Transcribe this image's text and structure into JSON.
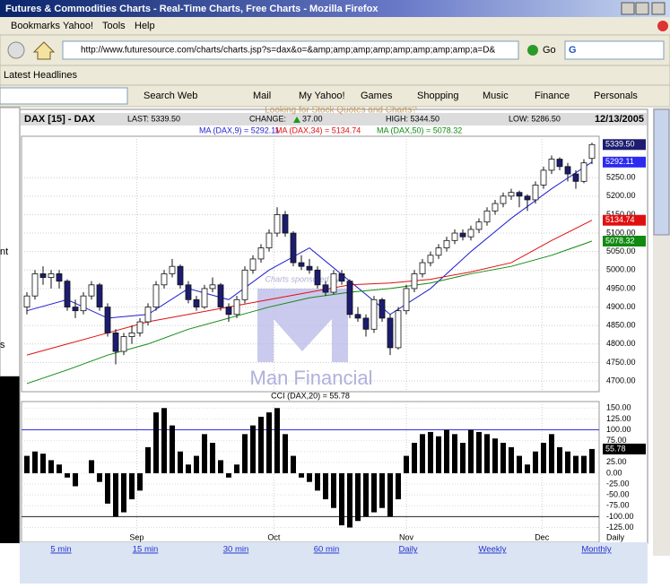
{
  "window": {
    "title": "Futures & Commodities Charts - Real-Time Charts, Free Charts - Mozilla Firefox"
  },
  "menu": [
    "Bookmarks",
    "Yahoo!",
    "Tools",
    "Help"
  ],
  "nav": {
    "url": "http://www.futuresource.com/charts/charts.jsp?s=dax&o=&amp;amp;amp;amp;amp;amp;amp;amp;a=D&",
    "go": "Go"
  },
  "headlines": "Latest Headlines",
  "yahoo_toolbar": [
    "Search Web",
    "Mail",
    "My Yahoo!",
    "Games",
    "Shopping",
    "Music",
    "Finance",
    "Personals"
  ],
  "sidebar": [
    "nt",
    "s"
  ],
  "promo": "Looking for Stock Quotes and Charts?",
  "watermark": {
    "sponsor": "Charts sponsored by",
    "brand": "Man Financial"
  },
  "chart": {
    "type": "candlestick",
    "symbol": "DAX [15] - DAX",
    "last": "LAST: 5339.50",
    "change": "CHANGE:",
    "change_value": "37.00",
    "high": "HIGH: 5344.50",
    "low": "LOW: 5286.50",
    "date": "12/13/2005",
    "ylim": [
      4671,
      5362
    ],
    "yticks": [
      {
        "value": 4700,
        "label": "4700.00"
      },
      {
        "value": 4750,
        "label": "4750.00"
      },
      {
        "value": 4800,
        "label": "4800.00"
      },
      {
        "value": 4850,
        "label": "4850.00"
      },
      {
        "value": 4900,
        "label": "4900.00"
      },
      {
        "value": 4950,
        "label": "4950.00"
      },
      {
        "value": 5000,
        "label": "5000.00"
      },
      {
        "value": 5050,
        "label": "5050.00"
      },
      {
        "value": 5100,
        "label": "5100.00"
      },
      {
        "value": 5150,
        "label": "5150.00"
      },
      {
        "value": 5200,
        "label": "5200.00"
      },
      {
        "value": 5250,
        "label": "5250.00"
      }
    ],
    "last_label": "5339.50",
    "candles": [
      [
        4900,
        4940,
        4880,
        4930
      ],
      [
        4930,
        5000,
        4920,
        4990
      ],
      [
        4990,
        5010,
        4960,
        4980
      ],
      [
        4980,
        5000,
        4950,
        4990
      ],
      [
        4990,
        5000,
        4950,
        4970
      ],
      [
        4970,
        4975,
        4890,
        4900
      ],
      [
        4900,
        4920,
        4870,
        4890
      ],
      [
        4890,
        4940,
        4880,
        4930
      ],
      [
        4930,
        4970,
        4920,
        4960
      ],
      [
        4960,
        4965,
        4890,
        4900
      ],
      [
        4900,
        4910,
        4820,
        4830
      ],
      [
        4830,
        4840,
        4745,
        4780
      ],
      [
        4780,
        4830,
        4770,
        4820
      ],
      [
        4820,
        4850,
        4800,
        4830
      ],
      [
        4830,
        4870,
        4820,
        4860
      ],
      [
        4860,
        4910,
        4850,
        4900
      ],
      [
        4900,
        4970,
        4890,
        4960
      ],
      [
        4960,
        5000,
        4950,
        4990
      ],
      [
        4990,
        5030,
        4980,
        5010
      ],
      [
        5010,
        5015,
        4950,
        4960
      ],
      [
        4960,
        4970,
        4910,
        4920
      ],
      [
        4920,
        4930,
        4890,
        4900
      ],
      [
        4900,
        4960,
        4895,
        4950
      ],
      [
        4950,
        4980,
        4940,
        4960
      ],
      [
        4960,
        4965,
        4890,
        4900
      ],
      [
        4900,
        4910,
        4860,
        4880
      ],
      [
        4880,
        4930,
        4870,
        4920
      ],
      [
        4920,
        5010,
        4910,
        5000
      ],
      [
        5000,
        5040,
        4990,
        5030
      ],
      [
        5030,
        5070,
        5020,
        5060
      ],
      [
        5060,
        5110,
        5050,
        5100
      ],
      [
        5100,
        5170,
        5090,
        5150
      ],
      [
        5150,
        5160,
        5090,
        5100
      ],
      [
        5100,
        5105,
        5010,
        5020
      ],
      [
        5020,
        5040,
        5000,
        5010
      ],
      [
        5010,
        5030,
        4990,
        5000
      ],
      [
        5000,
        5010,
        4950,
        4960
      ],
      [
        4960,
        4970,
        4930,
        4940
      ],
      [
        4940,
        5000,
        4935,
        4990
      ],
      [
        4990,
        5000,
        4960,
        4970
      ],
      [
        4970,
        4975,
        4870,
        4880
      ],
      [
        4880,
        4900,
        4860,
        4870
      ],
      [
        4870,
        4880,
        4820,
        4840
      ],
      [
        4840,
        4930,
        4830,
        4920
      ],
      [
        4920,
        4925,
        4860,
        4870
      ],
      [
        4870,
        4880,
        4770,
        4790
      ],
      [
        4790,
        4900,
        4785,
        4890
      ],
      [
        4890,
        4960,
        4880,
        4950
      ],
      [
        4950,
        5000,
        4940,
        4990
      ],
      [
        4990,
        5030,
        4980,
        5020
      ],
      [
        5020,
        5050,
        5010,
        5040
      ],
      [
        5040,
        5070,
        5030,
        5060
      ],
      [
        5060,
        5090,
        5050,
        5080
      ],
      [
        5080,
        5110,
        5070,
        5100
      ],
      [
        5100,
        5110,
        5080,
        5090
      ],
      [
        5090,
        5120,
        5080,
        5110
      ],
      [
        5110,
        5140,
        5100,
        5130
      ],
      [
        5130,
        5170,
        5120,
        5160
      ],
      [
        5160,
        5190,
        5150,
        5180
      ],
      [
        5180,
        5210,
        5170,
        5200
      ],
      [
        5200,
        5220,
        5190,
        5210
      ],
      [
        5210,
        5215,
        5170,
        5200
      ],
      [
        5200,
        5205,
        5160,
        5190
      ],
      [
        5190,
        5240,
        5180,
        5230
      ],
      [
        5230,
        5280,
        5220,
        5270
      ],
      [
        5270,
        5310,
        5260,
        5300
      ],
      [
        5300,
        5305,
        5270,
        5280
      ],
      [
        5280,
        5290,
        5240,
        5260
      ],
      [
        5260,
        5270,
        5220,
        5240
      ],
      [
        5240,
        5300,
        5235,
        5290
      ],
      [
        5302,
        5344.5,
        5286.5,
        5339.5
      ]
    ],
    "ma": {
      "x": [
        0,
        5,
        10,
        15,
        20,
        25,
        30,
        35,
        40,
        45,
        50,
        55,
        60,
        65,
        70
      ],
      "series": [
        {
          "name": "MA (DAX,9) = 5292.11",
          "color": "#1f1fd0",
          "value_label": "5292.11",
          "values": [
            4890,
            4920,
            4870,
            4880,
            4950,
            4920,
            5000,
            5060,
            4970,
            4880,
            4950,
            5050,
            5140,
            5220,
            5292.11
          ]
        },
        {
          "name": "MA (DAX,34) = 5134.74",
          "color": "#e01010",
          "value_label": "5134.74",
          "values": [
            4770,
            4800,
            4830,
            4860,
            4880,
            4900,
            4920,
            4940,
            4960,
            4965,
            4975,
            4995,
            5020,
            5080,
            5134.74
          ]
        },
        {
          "name": "MA (DAX,50) = 5078.32",
          "color": "#108a10",
          "value_label": "5078.32",
          "values": [
            4693,
            4730,
            4770,
            4800,
            4840,
            4870,
            4900,
            4925,
            4940,
            4950,
            4965,
            4990,
            5010,
            5040,
            5078.32
          ]
        }
      ]
    },
    "months": [
      {
        "label": "Sep",
        "x": 13.6
      },
      {
        "label": "Oct",
        "x": 30.6
      },
      {
        "label": "Nov",
        "x": 47
      },
      {
        "label": "Dec",
        "x": 63.8
      }
    ],
    "period": "Daily",
    "cci": {
      "title": "CCI (DAX,20) = 55.78",
      "value_label": "55.78",
      "ylim": [
        -159,
        165
      ],
      "yticks": [
        {
          "value": 150,
          "label": "150.00"
        },
        {
          "value": 125,
          "label": "125.00"
        },
        {
          "value": 100,
          "label": "100.00"
        },
        {
          "value": 75,
          "label": "75.00"
        },
        {
          "value": 50,
          "label": "50.00"
        },
        {
          "value": 25,
          "label": "25.00"
        },
        {
          "value": 0,
          "label": "0.00"
        },
        {
          "value": -25,
          "label": "-25.00"
        },
        {
          "value": -50,
          "label": "-50.00"
        },
        {
          "value": -75,
          "label": "-75.00"
        },
        {
          "value": -100,
          "label": "-100.00"
        },
        {
          "value": -125,
          "label": "-125.00"
        }
      ],
      "upper": 100,
      "lower": -100,
      "values": [
        40,
        50,
        45,
        30,
        20,
        -10,
        -30,
        0,
        30,
        -20,
        -70,
        -100,
        -90,
        -60,
        -40,
        60,
        140,
        150,
        110,
        50,
        20,
        40,
        90,
        70,
        30,
        -10,
        20,
        90,
        110,
        130,
        140,
        150,
        90,
        40,
        -10,
        -20,
        -40,
        -60,
        -80,
        -120,
        -125,
        -110,
        -100,
        -90,
        -80,
        -100,
        -60,
        40,
        70,
        90,
        95,
        85,
        100,
        90,
        70,
        100,
        95,
        90,
        80,
        70,
        60,
        40,
        20,
        50,
        70,
        90,
        60,
        50,
        40,
        40,
        55.78
      ]
    },
    "periods": [
      "5 min",
      "15 min",
      "30 min",
      "60 min",
      "Daily",
      "Weekly",
      "Monthly"
    ]
  }
}
